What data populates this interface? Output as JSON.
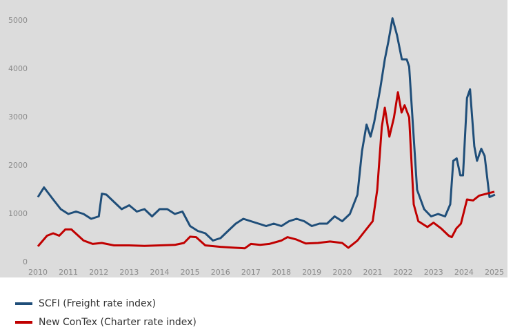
{
  "chart_data": {
    "type": "line",
    "xlim": [
      2010,
      2025
    ],
    "xticks": [
      2010,
      2011,
      2012,
      2013,
      2014,
      2015,
      2016,
      2017,
      2018,
      2019,
      2020,
      2021,
      2022,
      2023,
      2024,
      2025
    ],
    "ylim": [
      0,
      5000
    ],
    "yticks": [
      0,
      1000,
      2000,
      3000,
      4000,
      5000
    ],
    "grid": false,
    "legend": "bottom-left",
    "series": [
      {
        "name": "SCFI (Freight rate index)",
        "color": "#1f4e79",
        "x": [
          2010,
          2010.2,
          2010.5,
          2010.75,
          2011,
          2011.25,
          2011.5,
          2011.75,
          2012,
          2012.1,
          2012.25,
          2012.5,
          2012.75,
          2013,
          2013.25,
          2013.5,
          2013.75,
          2014,
          2014.25,
          2014.5,
          2014.75,
          2015,
          2015.25,
          2015.5,
          2015.75,
          2016,
          2016.25,
          2016.5,
          2016.75,
          2017,
          2017.25,
          2017.5,
          2017.75,
          2018,
          2018.25,
          2018.5,
          2018.75,
          2019,
          2019.25,
          2019.5,
          2019.75,
          2020,
          2020.25,
          2020.5,
          2020.65,
          2020.8,
          2020.93,
          2021.05,
          2021.25,
          2021.4,
          2021.52,
          2021.65,
          2021.8,
          2021.96,
          2022.12,
          2022.2,
          2022.46,
          2022.69,
          2022.92,
          2023.15,
          2023.38,
          2023.55,
          2023.65,
          2023.76,
          2023.88,
          2023.97,
          2024.1,
          2024.2,
          2024.34,
          2024.43,
          2024.57,
          2024.68,
          2024.84,
          2025.02
        ],
        "values": [
          1350,
          1550,
          1300,
          1100,
          1000,
          1050,
          1000,
          900,
          950,
          1420,
          1400,
          1250,
          1100,
          1180,
          1050,
          1100,
          950,
          1100,
          1100,
          1000,
          1050,
          750,
          650,
          600,
          450,
          500,
          650,
          800,
          900,
          850,
          800,
          750,
          800,
          750,
          850,
          900,
          850,
          750,
          800,
          800,
          950,
          850,
          1000,
          1400,
          2300,
          2850,
          2600,
          2900,
          3600,
          4200,
          4580,
          5050,
          4700,
          4200,
          4200,
          4050,
          1500,
          1100,
          950,
          1000,
          950,
          1200,
          2100,
          2150,
          1800,
          1800,
          3400,
          3580,
          2400,
          2100,
          2350,
          2200,
          1350,
          1400
        ]
      },
      {
        "name": "New ConTex (Charter rate index)",
        "color": "#c00000",
        "x": [
          2010,
          2010.3,
          2010.5,
          2010.7,
          2010.9,
          2011.1,
          2011.5,
          2011.8,
          2012.1,
          2012.5,
          2013,
          2013.5,
          2014,
          2014.5,
          2014.8,
          2015,
          2015.2,
          2015.5,
          2016,
          2016.5,
          2016.8,
          2017,
          2017.3,
          2017.6,
          2018,
          2018.2,
          2018.5,
          2018.8,
          2019.2,
          2019.6,
          2020,
          2020.2,
          2020.5,
          2020.75,
          2021,
          2021.15,
          2021.3,
          2021.4,
          2021.55,
          2021.7,
          2021.83,
          2021.95,
          2022.05,
          2022.2,
          2022.35,
          2022.5,
          2022.8,
          2023,
          2023.25,
          2023.5,
          2023.6,
          2023.75,
          2023.9,
          2024.1,
          2024.3,
          2024.5,
          2024.75,
          2025
        ],
        "values": [
          330,
          550,
          600,
          550,
          680,
          680,
          450,
          380,
          400,
          350,
          350,
          340,
          350,
          360,
          400,
          530,
          520,
          350,
          320,
          300,
          290,
          380,
          360,
          380,
          450,
          520,
          470,
          390,
          400,
          430,
          400,
          300,
          450,
          650,
          850,
          1500,
          2800,
          3200,
          2600,
          3000,
          3520,
          3100,
          3250,
          3000,
          1200,
          850,
          730,
          820,
          700,
          550,
          520,
          700,
          800,
          1300,
          1280,
          1380,
          1420,
          1460
        ]
      }
    ]
  }
}
